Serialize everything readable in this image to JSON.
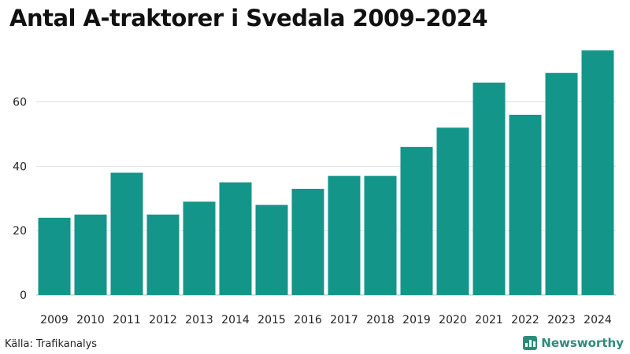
{
  "chart_data": {
    "type": "bar",
    "title": "Antal A-traktorer i Svedala 2009–2024",
    "xlabel": "",
    "ylabel": "",
    "categories": [
      "2009",
      "2010",
      "2011",
      "2012",
      "2013",
      "2014",
      "2015",
      "2016",
      "2017",
      "2018",
      "2019",
      "2020",
      "2021",
      "2022",
      "2023",
      "2024"
    ],
    "values": [
      24,
      25,
      38,
      25,
      29,
      35,
      28,
      33,
      37,
      37,
      46,
      52,
      66,
      56,
      69,
      76
    ],
    "ylim": [
      0,
      77
    ],
    "yticks": [
      0,
      20,
      40,
      60
    ],
    "grid": true,
    "bar_color": "#14958a",
    "grid_color": "#e0e0e0"
  },
  "footer": {
    "source": "Källa: Trafikanalys",
    "brand": "Newsworthy",
    "brand_color": "#2e8b7a"
  }
}
